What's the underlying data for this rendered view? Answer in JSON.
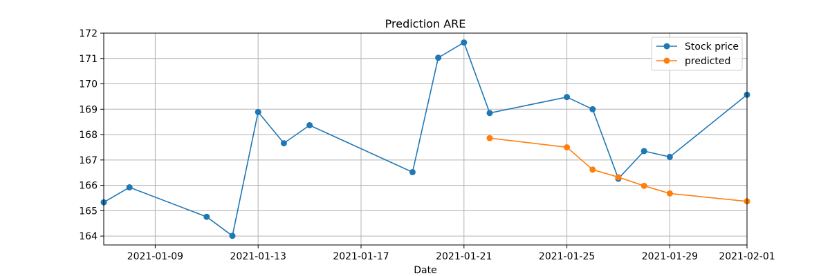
{
  "chart_data": {
    "type": "line",
    "title": "Prediction ARE",
    "xlabel": "Date",
    "ylabel": "",
    "xlim": [
      "2021-01-07",
      "2021-02-01"
    ],
    "ylim": [
      163.65,
      172.0
    ],
    "grid": true,
    "legend_position": "top-right",
    "x_ticks": [
      "2021-01-09",
      "2021-01-13",
      "2021-01-17",
      "2021-01-21",
      "2021-01-25",
      "2021-01-29",
      "2021-02-01"
    ],
    "y_ticks": [
      164,
      165,
      166,
      167,
      168,
      169,
      170,
      171,
      172
    ],
    "series": [
      {
        "name": "Stock price",
        "color": "#1f77b4",
        "x": [
          "2021-01-07",
          "2021-01-08",
          "2021-01-11",
          "2021-01-12",
          "2021-01-13",
          "2021-01-14",
          "2021-01-15",
          "2021-01-19",
          "2021-01-20",
          "2021-01-21",
          "2021-01-22",
          "2021-01-25",
          "2021-01-26",
          "2021-01-27",
          "2021-01-28",
          "2021-01-29",
          "2021-02-01"
        ],
        "values": [
          165.33,
          165.92,
          164.76,
          164.01,
          168.89,
          167.66,
          168.37,
          166.52,
          171.03,
          171.63,
          168.85,
          169.48,
          169.0,
          166.26,
          167.35,
          167.12,
          169.57
        ]
      },
      {
        "name": "predicted",
        "color": "#ff7f0e",
        "x": [
          "2021-01-22",
          "2021-01-25",
          "2021-01-26",
          "2021-01-27",
          "2021-01-28",
          "2021-01-29",
          "2021-02-01"
        ],
        "values": [
          167.86,
          167.5,
          166.62,
          166.32,
          165.98,
          165.68,
          165.37
        ]
      }
    ]
  }
}
